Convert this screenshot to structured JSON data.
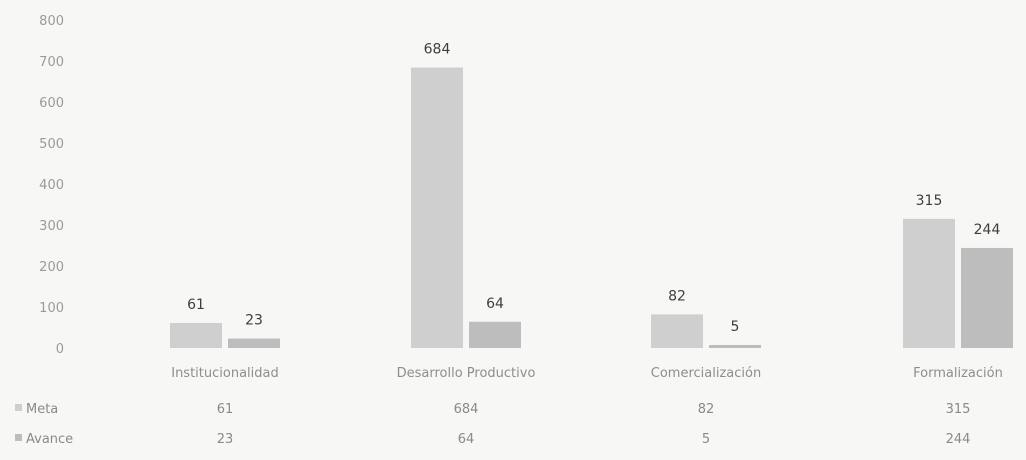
{
  "chart_data": {
    "type": "bar",
    "categories": [
      "Institucionalidad",
      "Desarrollo Productivo",
      "Comercialización",
      "Formalización"
    ],
    "series": [
      {
        "name": "Meta",
        "values": [
          61,
          684,
          82,
          315
        ],
        "color": "#cfcfcf"
      },
      {
        "name": "Avance",
        "values": [
          23,
          64,
          5,
          244
        ],
        "color": "#bdbdbd"
      }
    ],
    "ylim": [
      0,
      800
    ],
    "yticks": [
      "0",
      "100",
      "200",
      "300",
      "400",
      "500",
      "600",
      "700",
      "800"
    ],
    "grid": false,
    "legend": "data-table",
    "data_labels": true,
    "table": {
      "rows": [
        {
          "label": "Meta",
          "values": [
            "61",
            "684",
            "82",
            "315"
          ]
        },
        {
          "label": "Avance",
          "values": [
            "23",
            "64",
            "5",
            "244"
          ]
        }
      ]
    }
  }
}
